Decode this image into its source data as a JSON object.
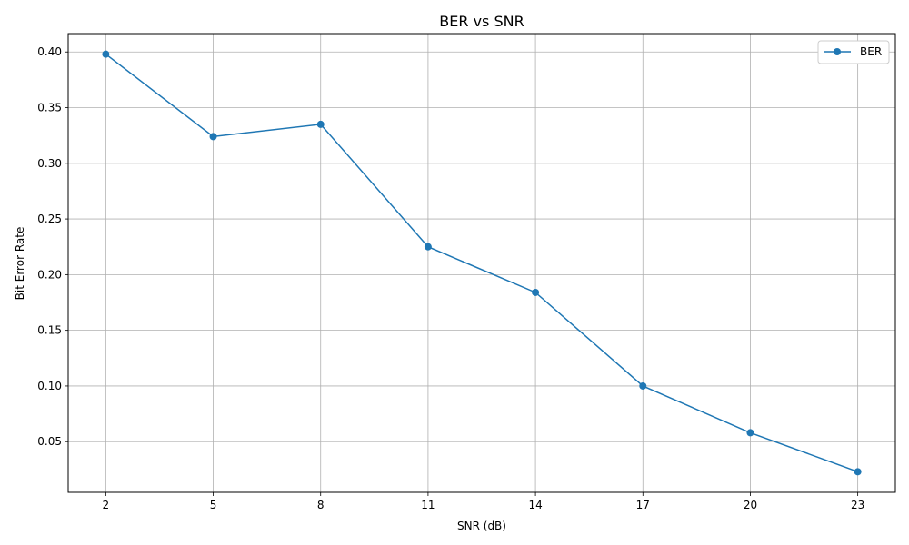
{
  "chart_data": {
    "type": "line",
    "title": "BER vs SNR",
    "xlabel": "SNR (dB)",
    "ylabel": "Bit Error Rate",
    "x": [
      2,
      5,
      8,
      11,
      14,
      17,
      20,
      23
    ],
    "xticks": [
      "2",
      "5",
      "8",
      "11",
      "14",
      "17",
      "20",
      "23"
    ],
    "yticks": [
      "0.05",
      "0.10",
      "0.15",
      "0.20",
      "0.25",
      "0.30",
      "0.35",
      "0.40"
    ],
    "ytick_values": [
      0.05,
      0.1,
      0.15,
      0.2,
      0.25,
      0.3,
      0.35,
      0.4
    ],
    "xlim": [
      0.95,
      24.05
    ],
    "ylim": [
      0.0045,
      0.4165
    ],
    "grid": true,
    "legend_position": "top-right",
    "series": [
      {
        "name": "BER",
        "color": "#1f77b4",
        "marker": "circle",
        "values": [
          0.398,
          0.324,
          0.335,
          0.225,
          0.184,
          0.1,
          0.058,
          0.023
        ]
      }
    ]
  }
}
